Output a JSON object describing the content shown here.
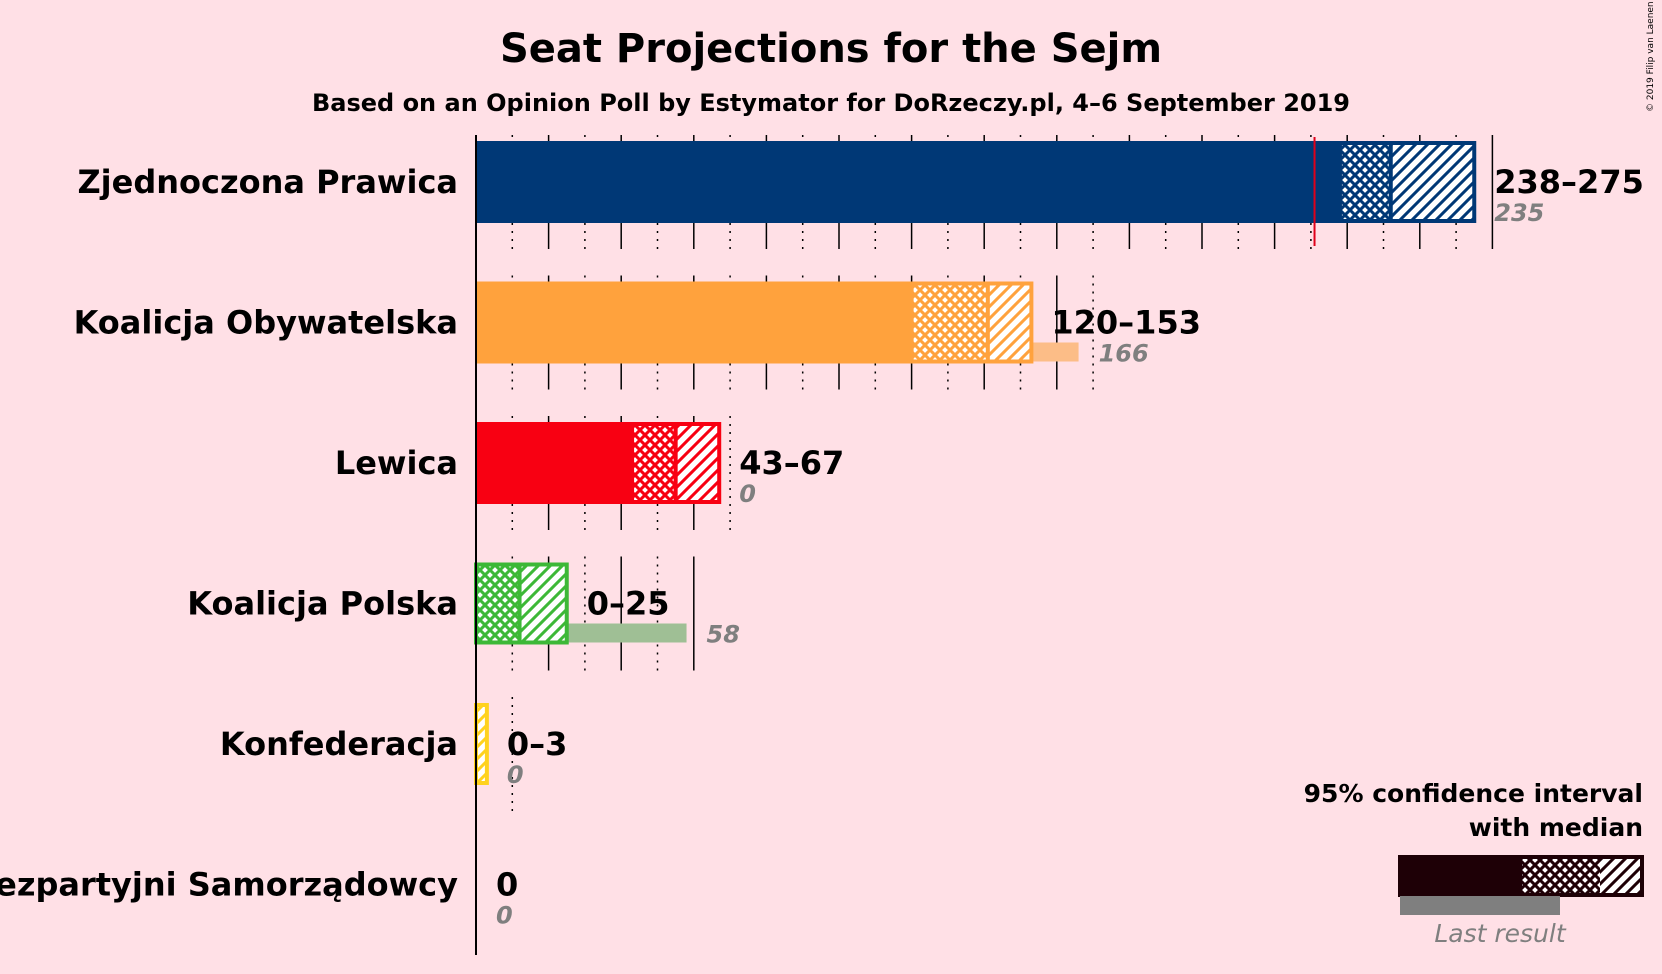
{
  "title": "Seat Projections for the Sejm",
  "subtitle": "Based on an Opinion Poll by Estymator for DoRzeczy.pl, 4–6 September 2019",
  "copyright": "© 2019 Filip van Laenen",
  "legend": {
    "line1": "95% confidence interval",
    "line2": "with median",
    "last_result_label": "Last result",
    "color": "#1E0006"
  },
  "colors": {
    "background": "#FFE0E6",
    "majority_line": "#E0001A",
    "last_result_text": "#7F7F7F"
  },
  "chart_data": {
    "type": "bar",
    "orientation": "horizontal",
    "majority_threshold": 231,
    "x_gridline_step": 10,
    "categories": [
      "Zjednoczona Prawica",
      "Koalicja Obywatelska",
      "Lewica",
      "Koalicja Polska",
      "Konfederacja",
      "Bezpartyjni Samorządowcy"
    ],
    "series": [
      {
        "name": "Zjednoczona Prawica",
        "ci_low": 238,
        "median": 252,
        "ci_high": 275,
        "range_label": "238–275",
        "last_result": 235,
        "last_label": "235",
        "color": "#003876",
        "last_color": "#7F8299"
      },
      {
        "name": "Koalicja Obywatelska",
        "ci_low": 120,
        "median": 141,
        "ci_high": 153,
        "range_label": "120–153",
        "last_result": 166,
        "last_label": "166",
        "color": "#FFA23D",
        "last_color": "#FCBD87"
      },
      {
        "name": "Lewica",
        "ci_low": 43,
        "median": 55,
        "ci_high": 67,
        "range_label": "43–67",
        "last_result": 0,
        "last_label": "0",
        "color": "#F80012",
        "last_color": "#F88A90"
      },
      {
        "name": "Koalicja Polska",
        "ci_low": 0,
        "median": 12,
        "ci_high": 25,
        "range_label": "0–25",
        "last_result": 58,
        "last_label": "58",
        "color": "#3DB837",
        "last_color": "#9FBF95"
      },
      {
        "name": "Konfederacja",
        "ci_low": 0,
        "median": 0,
        "ci_high": 3,
        "range_label": "0–3",
        "last_result": 0,
        "last_label": "0",
        "color": "#FFD21E",
        "last_color": "#FFD97A"
      },
      {
        "name": "Bezpartyjni Samorządowcy",
        "ci_low": 0,
        "median": 0,
        "ci_high": 0,
        "range_label": "0",
        "last_result": 0,
        "last_label": "0",
        "color": "#000000",
        "last_color": "#7F7F7F"
      }
    ]
  }
}
